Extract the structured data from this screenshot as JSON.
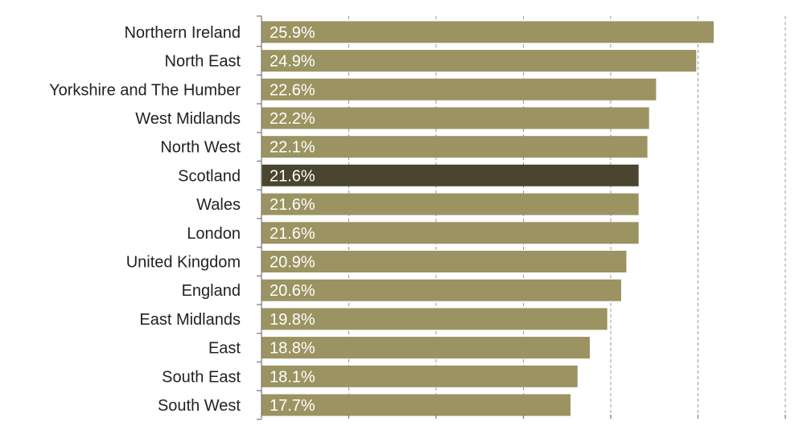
{
  "chart_data": {
    "type": "bar",
    "orientation": "horizontal",
    "categories": [
      "Northern Ireland",
      "North East",
      "Yorkshire and The Humber",
      "West Midlands",
      "North West",
      "Scotland",
      "Wales",
      "London",
      "United Kingdom",
      "England",
      "East Midlands",
      "East",
      "South East",
      "South West"
    ],
    "values": [
      25.9,
      24.9,
      22.6,
      22.2,
      22.1,
      21.6,
      21.6,
      21.6,
      20.9,
      20.6,
      19.8,
      18.8,
      18.1,
      17.7
    ],
    "value_labels": [
      "25.9%",
      "24.9%",
      "22.6%",
      "22.2%",
      "22.1%",
      "21.6%",
      "21.6%",
      "21.6%",
      "20.9%",
      "20.6%",
      "19.8%",
      "18.8%",
      "18.1%",
      "17.7%"
    ],
    "highlight_category": "Scotland",
    "xlim": [
      0,
      30
    ],
    "x_grid_interval": 5,
    "grid": true,
    "grid_style": "dashed-vertical",
    "legend": false,
    "x_tick_labels_shown": false,
    "title": "",
    "xlabel": "",
    "ylabel": "",
    "colors": {
      "bar": "#9b9361",
      "highlight": "#4a452f",
      "value_text": "#ffffff",
      "category_text": "#222222",
      "grid": "#9a9a9a",
      "axis": "#808080"
    }
  }
}
